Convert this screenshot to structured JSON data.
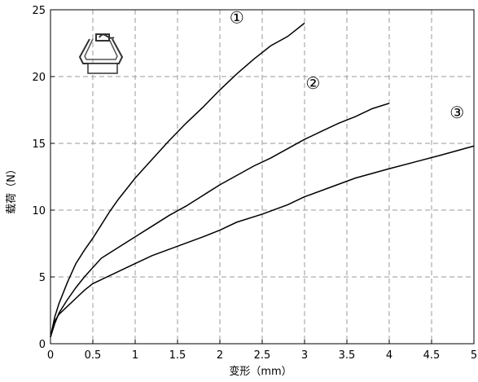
{
  "chart_data": {
    "type": "line",
    "title": "",
    "xlabel": "变形（mm）",
    "ylabel": "载荷（N）",
    "xlim": [
      0,
      5
    ],
    "ylim": [
      0,
      25
    ],
    "x_ticks": [
      "0",
      "0.5",
      "1",
      "1.5",
      "2",
      "2.5",
      "3",
      "3.5",
      "4",
      "4.5",
      "5"
    ],
    "y_ticks": [
      "0",
      "5",
      "10",
      "15",
      "20",
      "25"
    ],
    "grid": true,
    "grid_style": "dashed",
    "series": [
      {
        "name": "①",
        "color": "#000000",
        "x": [
          0,
          0.05,
          0.1,
          0.2,
          0.3,
          0.4,
          0.5,
          0.6,
          0.7,
          0.8,
          0.9,
          1.0,
          1.2,
          1.4,
          1.6,
          1.8,
          2.0,
          2.2,
          2.4,
          2.6,
          2.8,
          3.0
        ],
        "y": [
          0.5,
          2.0,
          3.0,
          4.6,
          6.0,
          7.0,
          7.9,
          8.9,
          9.9,
          10.8,
          11.6,
          12.4,
          13.8,
          15.2,
          16.5,
          17.7,
          19.0,
          20.2,
          21.3,
          22.3,
          23.0,
          24.0
        ]
      },
      {
        "name": "②",
        "color": "#000000",
        "x": [
          0,
          0.05,
          0.1,
          0.2,
          0.3,
          0.4,
          0.5,
          0.6,
          0.8,
          1.0,
          1.2,
          1.4,
          1.6,
          1.8,
          2.0,
          2.2,
          2.4,
          2.6,
          2.8,
          3.0,
          3.2,
          3.4,
          3.6,
          3.8,
          4.0
        ],
        "y": [
          0.5,
          1.5,
          2.3,
          3.3,
          4.2,
          5.0,
          5.7,
          6.4,
          7.2,
          8.0,
          8.8,
          9.6,
          10.3,
          11.1,
          11.9,
          12.6,
          13.3,
          13.9,
          14.6,
          15.3,
          15.9,
          16.5,
          17.0,
          17.6,
          18.0
        ]
      },
      {
        "name": "③",
        "color": "#000000",
        "x": [
          0,
          0.05,
          0.1,
          0.2,
          0.3,
          0.4,
          0.5,
          0.6,
          0.8,
          1.0,
          1.2,
          1.5,
          1.8,
          2.0,
          2.2,
          2.5,
          2.8,
          3.0,
          3.3,
          3.6,
          4.0,
          4.3,
          4.6,
          5.0
        ],
        "y": [
          0.5,
          1.7,
          2.2,
          2.8,
          3.4,
          4.0,
          4.5,
          4.8,
          5.4,
          6.0,
          6.6,
          7.3,
          8.0,
          8.5,
          9.1,
          9.7,
          10.4,
          11.0,
          11.7,
          12.4,
          13.1,
          13.6,
          14.1,
          14.8
        ]
      }
    ],
    "series_label_positions_data": [
      {
        "label": "①",
        "x": 2.2,
        "y": 24.0
      },
      {
        "label": "②",
        "x": 3.1,
        "y": 19.1
      },
      {
        "label": "③",
        "x": 4.8,
        "y": 16.9
      }
    ]
  }
}
